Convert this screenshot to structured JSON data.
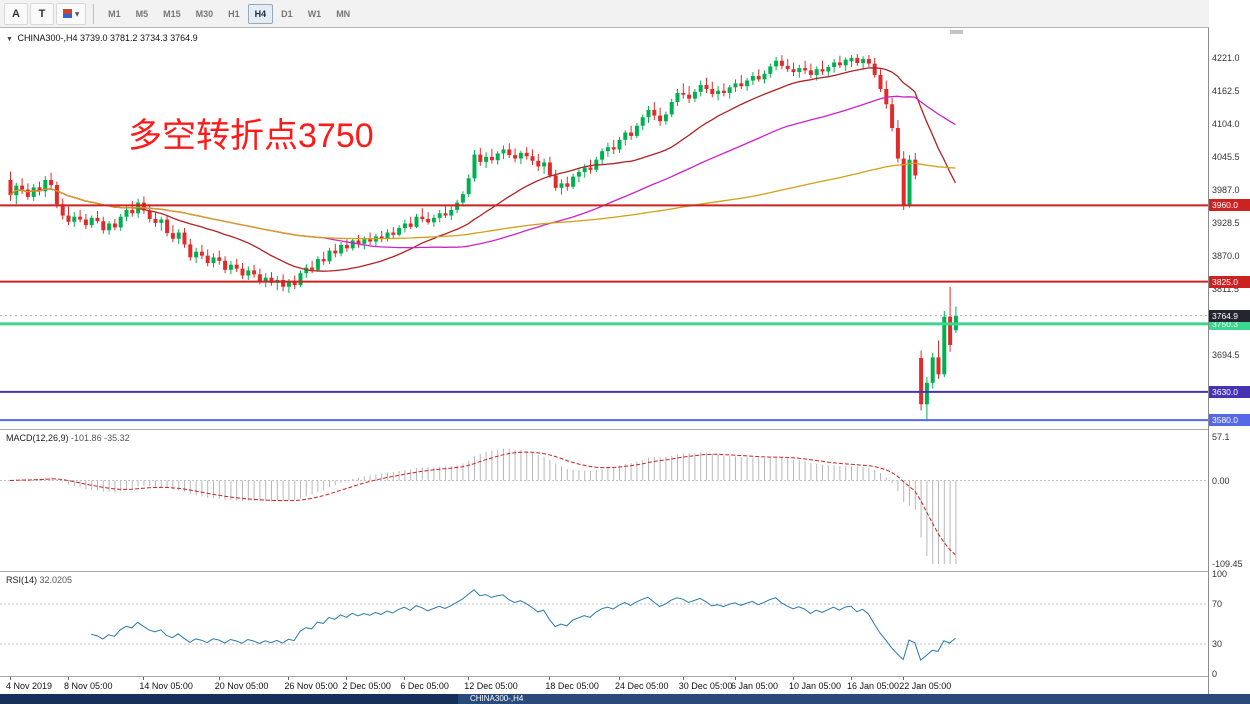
{
  "toolbar": {
    "tools": [
      {
        "label": "A"
      },
      {
        "label": "T"
      }
    ],
    "draw_tool_caret": "▾",
    "timeframes": [
      "M1",
      "M5",
      "M15",
      "M30",
      "H1",
      "H4",
      "D1",
      "W1",
      "MN"
    ],
    "active_timeframe": "H4"
  },
  "chart": {
    "title_collapse_icon": "▼",
    "title_symbol": "CHINA300-,H4",
    "title_ohlc": "3739.0 3781.2 3734.3 3764.9",
    "annotation": {
      "text": "多空转折点3750",
      "color": "#ff1a1a"
    },
    "price_axis_labels": [
      "4221.0",
      "4162.5",
      "4104.0",
      "4045.5",
      "3987.0",
      "3928.5",
      "3870.0",
      "3811.5",
      "3694.5"
    ]
  },
  "chart_data": {
    "type": "candlestick",
    "symbol": "CHINA300",
    "timeframe": "H4",
    "current_ohlc": {
      "open": 3739.0,
      "high": 3781.2,
      "low": 3734.3,
      "close": 3764.9
    },
    "current_price": 3764.9,
    "current_price_badge": {
      "label": "3764.9",
      "color": "#23262e"
    },
    "price_axis_range": [
      4274,
      3564
    ],
    "hlines": [
      {
        "price": 3960.0,
        "label": "3960.0",
        "color": "#cc2222",
        "width": 2
      },
      {
        "price": 3825.0,
        "label": "3825.0",
        "color": "#cc2222",
        "width": 2
      },
      {
        "price": 3750.3,
        "label": "3750.3",
        "color": "#3bd68f",
        "width": 3
      },
      {
        "price": 3630.0,
        "label": "3630.0",
        "color": "#4533b4",
        "width": 2
      },
      {
        "price": 3580.0,
        "label": "3580.0",
        "color": "#5468e8",
        "width": 2
      }
    ],
    "moving_averages": [
      {
        "period": 22,
        "color": "#b22222"
      },
      {
        "period": 55,
        "color": "#cc22cc"
      },
      {
        "period": 120,
        "color": "#d4a017"
      }
    ],
    "time_labels": [
      {
        "i": 0,
        "t": "4 Nov 2019"
      },
      {
        "i": 10,
        "t": "8 Nov 05:00"
      },
      {
        "i": 23,
        "t": "14 Nov 05:00"
      },
      {
        "i": 36,
        "t": "20 Nov 05:00"
      },
      {
        "i": 48,
        "t": "26 Nov 05:00"
      },
      {
        "i": 58,
        "t": "2 Dec 05:00"
      },
      {
        "i": 68,
        "t": "6 Dec 05:00"
      },
      {
        "i": 79,
        "t": "12 Dec 05:00"
      },
      {
        "i": 93,
        "t": "18 Dec 05:00"
      },
      {
        "i": 105,
        "t": "24 Dec 05:00"
      },
      {
        "i": 116,
        "t": "30 Dec 05:00"
      },
      {
        "i": 125,
        "t": "6 Jan 05:00"
      },
      {
        "i": 135,
        "t": "10 Jan 05:00"
      },
      {
        "i": 145,
        "t": "16 Jan 05:00"
      },
      {
        "i": 154,
        "t": "22 Jan 05:00"
      }
    ],
    "indicators": [
      {
        "name": "MACD",
        "label": "MACD(12,26,9)",
        "values_text": "-101.86 -35.32",
        "axis_labels": [
          "57.1",
          "0.00",
          "-109.45"
        ],
        "axis_range": [
          57.1,
          -109.45
        ],
        "fast": 12,
        "slow": 26,
        "signal": 9
      },
      {
        "name": "RSI",
        "label": "RSI(14)",
        "values_text": "32.0205",
        "axis_labels": [
          "100",
          "70",
          "30",
          "0"
        ],
        "levels": [
          70,
          30
        ],
        "period": 14
      }
    ],
    "candles": [
      [
        4005,
        4020,
        3968,
        3978
      ],
      [
        3978,
        4000,
        3962,
        3995
      ],
      [
        3995,
        4008,
        3980,
        3988
      ],
      [
        3988,
        3999,
        3970,
        3975
      ],
      [
        3975,
        3998,
        3968,
        3992
      ],
      [
        3992,
        4002,
        3978,
        3985
      ],
      [
        3985,
        4012,
        3975,
        4005
      ],
      [
        4005,
        4018,
        3990,
        3996
      ],
      [
        3996,
        4002,
        3955,
        3962
      ],
      [
        3962,
        3972,
        3935,
        3942
      ],
      [
        3942,
        3958,
        3925,
        3931
      ],
      [
        3931,
        3948,
        3922,
        3940
      ],
      [
        3940,
        3952,
        3930,
        3935
      ],
      [
        3935,
        3945,
        3918,
        3925
      ],
      [
        3925,
        3942,
        3920,
        3938
      ],
      [
        3938,
        3950,
        3928,
        3932
      ],
      [
        3932,
        3940,
        3910,
        3916
      ],
      [
        3916,
        3932,
        3908,
        3928
      ],
      [
        3928,
        3936,
        3916,
        3921
      ],
      [
        3921,
        3945,
        3915,
        3940
      ],
      [
        3940,
        3958,
        3932,
        3952
      ],
      [
        3952,
        3968,
        3940,
        3946
      ],
      [
        3946,
        3972,
        3938,
        3965
      ],
      [
        3965,
        3976,
        3945,
        3951
      ],
      [
        3951,
        3962,
        3930,
        3936
      ],
      [
        3936,
        3948,
        3922,
        3929
      ],
      [
        3929,
        3940,
        3915,
        3935
      ],
      [
        3935,
        3942,
        3905,
        3911
      ],
      [
        3911,
        3925,
        3895,
        3901
      ],
      [
        3901,
        3918,
        3892,
        3912
      ],
      [
        3912,
        3920,
        3885,
        3891
      ],
      [
        3891,
        3901,
        3862,
        3868
      ],
      [
        3868,
        3885,
        3858,
        3878
      ],
      [
        3878,
        3890,
        3865,
        3871
      ],
      [
        3871,
        3882,
        3852,
        3858
      ],
      [
        3858,
        3875,
        3850,
        3868
      ],
      [
        3868,
        3880,
        3855,
        3862
      ],
      [
        3862,
        3870,
        3840,
        3846
      ],
      [
        3846,
        3862,
        3838,
        3855
      ],
      [
        3855,
        3865,
        3842,
        3848
      ],
      [
        3848,
        3858,
        3830,
        3836
      ],
      [
        3836,
        3852,
        3828,
        3845
      ],
      [
        3845,
        3855,
        3832,
        3838
      ],
      [
        3838,
        3848,
        3820,
        3826
      ],
      [
        3826,
        3840,
        3815,
        3832
      ],
      [
        3832,
        3842,
        3818,
        3823
      ],
      [
        3823,
        3835,
        3810,
        3828
      ],
      [
        3828,
        3838,
        3808,
        3816
      ],
      [
        3816,
        3830,
        3805,
        3824
      ],
      [
        3824,
        3836,
        3812,
        3819
      ],
      [
        3819,
        3845,
        3815,
        3840
      ],
      [
        3840,
        3856,
        3832,
        3850
      ],
      [
        3850,
        3862,
        3840,
        3846
      ],
      [
        3846,
        3870,
        3842,
        3865
      ],
      [
        3865,
        3878,
        3855,
        3861
      ],
      [
        3861,
        3885,
        3856,
        3880
      ],
      [
        3880,
        3892,
        3868,
        3875
      ],
      [
        3875,
        3895,
        3870,
        3890
      ],
      [
        3890,
        3900,
        3878,
        3884
      ],
      [
        3884,
        3902,
        3880,
        3898
      ],
      [
        3898,
        3908,
        3885,
        3892
      ],
      [
        3892,
        3905,
        3882,
        3900
      ],
      [
        3900,
        3912,
        3890,
        3896
      ],
      [
        3896,
        3910,
        3888,
        3905
      ],
      [
        3905,
        3915,
        3895,
        3901
      ],
      [
        3901,
        3918,
        3896,
        3912
      ],
      [
        3912,
        3922,
        3902,
        3908
      ],
      [
        3908,
        3925,
        3905,
        3920
      ],
      [
        3920,
        3935,
        3912,
        3928
      ],
      [
        3928,
        3940,
        3918,
        3922
      ],
      [
        3922,
        3945,
        3920,
        3940
      ],
      [
        3940,
        3955,
        3930,
        3936
      ],
      [
        3936,
        3948,
        3926,
        3930
      ],
      [
        3930,
        3944,
        3922,
        3938
      ],
      [
        3938,
        3952,
        3930,
        3946
      ],
      [
        3946,
        3960,
        3938,
        3942
      ],
      [
        3942,
        3958,
        3934,
        3952
      ],
      [
        3952,
        3970,
        3946,
        3965
      ],
      [
        3965,
        3985,
        3958,
        3980
      ],
      [
        3980,
        4015,
        3975,
        4008
      ],
      [
        4008,
        4058,
        4002,
        4050
      ],
      [
        4050,
        4062,
        4030,
        4037
      ],
      [
        4037,
        4054,
        4026,
        4046
      ],
      [
        4046,
        4060,
        4034,
        4040
      ],
      [
        4040,
        4056,
        4032,
        4052
      ],
      [
        4052,
        4066,
        4042,
        4059
      ],
      [
        4059,
        4070,
        4044,
        4049
      ],
      [
        4049,
        4061,
        4036,
        4043
      ],
      [
        4043,
        4057,
        4033,
        4053
      ],
      [
        4053,
        4063,
        4041,
        4047
      ],
      [
        4047,
        4059,
        4031,
        4039
      ],
      [
        4039,
        4051,
        4021,
        4029
      ],
      [
        4029,
        4043,
        4016,
        4036
      ],
      [
        4036,
        4046,
        4009,
        4013
      ],
      [
        4013,
        4023,
        3986,
        3991
      ],
      [
        3991,
        4006,
        3979,
        3999
      ],
      [
        3999,
        4011,
        3986,
        3993
      ],
      [
        3993,
        4016,
        3989,
        4011
      ],
      [
        4011,
        4026,
        4001,
        4019
      ],
      [
        4019,
        4033,
        4009,
        4027
      ],
      [
        4027,
        4041,
        4016,
        4023
      ],
      [
        4023,
        4046,
        4019,
        4041
      ],
      [
        4041,
        4061,
        4033,
        4056
      ],
      [
        4056,
        4071,
        4046,
        4063
      ],
      [
        4063,
        4076,
        4051,
        4059
      ],
      [
        4059,
        4081,
        4053,
        4076
      ],
      [
        4076,
        4093,
        4066,
        4089
      ],
      [
        4089,
        4101,
        4076,
        4083
      ],
      [
        4083,
        4106,
        4079,
        4101
      ],
      [
        4101,
        4121,
        4093,
        4116
      ],
      [
        4116,
        4136,
        4106,
        4129
      ],
      [
        4129,
        4143,
        4111,
        4119
      ],
      [
        4119,
        4133,
        4101,
        4109
      ],
      [
        4109,
        4126,
        4103,
        4121
      ],
      [
        4121,
        4149,
        4116,
        4143
      ],
      [
        4143,
        4166,
        4136,
        4159
      ],
      [
        4159,
        4176,
        4149,
        4156
      ],
      [
        4156,
        4171,
        4141,
        4149
      ],
      [
        4149,
        4166,
        4143,
        4161
      ],
      [
        4161,
        4181,
        4153,
        4173
      ],
      [
        4173,
        4186,
        4159,
        4166
      ],
      [
        4166,
        4179,
        4151,
        4157
      ],
      [
        4157,
        4171,
        4146,
        4163
      ],
      [
        4163,
        4176,
        4153,
        4159
      ],
      [
        4159,
        4173,
        4149,
        4169
      ],
      [
        4169,
        4183,
        4161,
        4176
      ],
      [
        4176,
        4191,
        4166,
        4171
      ],
      [
        4171,
        4186,
        4163,
        4181
      ],
      [
        4181,
        4196,
        4173,
        4189
      ],
      [
        4189,
        4201,
        4179,
        4183
      ],
      [
        4183,
        4199,
        4176,
        4193
      ],
      [
        4193,
        4211,
        4186,
        4206
      ],
      [
        4206,
        4223,
        4199,
        4216
      ],
      [
        4216,
        4226,
        4201,
        4207
      ],
      [
        4207,
        4219,
        4196,
        4201
      ],
      [
        4201,
        4213,
        4189,
        4196
      ],
      [
        4196,
        4209,
        4186,
        4203
      ],
      [
        4203,
        4216,
        4193,
        4199
      ],
      [
        4199,
        4211,
        4186,
        4191
      ],
      [
        4191,
        4206,
        4181,
        4201
      ],
      [
        4201,
        4216,
        4191,
        4197
      ],
      [
        4197,
        4209,
        4187,
        4205
      ],
      [
        4205,
        4219,
        4195,
        4213
      ],
      [
        4213,
        4225,
        4203,
        4208
      ],
      [
        4208,
        4222,
        4198,
        4218
      ],
      [
        4215,
        4226,
        4205,
        4221
      ],
      [
        4221,
        4228,
        4207,
        4212
      ],
      [
        4212,
        4224,
        4200,
        4219
      ],
      [
        4219,
        4226,
        4205,
        4211
      ],
      [
        4211,
        4221,
        4186,
        4191
      ],
      [
        4191,
        4201,
        4161,
        4166
      ],
      [
        4166,
        4181,
        4131,
        4139
      ],
      [
        4139,
        4151,
        4091,
        4097
      ],
      [
        4097,
        4111,
        4036,
        4043
      ],
      [
        4043,
        4056,
        3952,
        3961
      ],
      [
        3961,
        4049,
        3956,
        4041
      ],
      [
        4041,
        4053,
        4006,
        4013
      ],
      [
        3690,
        3703,
        3597,
        3608
      ],
      [
        3608,
        3656,
        3578,
        3646
      ],
      [
        3646,
        3699,
        3636,
        3691
      ],
      [
        3691,
        3721,
        3653,
        3661
      ],
      [
        3661,
        3773,
        3656,
        3763
      ],
      [
        3763,
        3816,
        3701,
        3713
      ],
      [
        3739,
        3781.2,
        3734.3,
        3764.9
      ]
    ]
  },
  "colors": {
    "candle_up": "#00b050",
    "candle_down": "#e02b2b",
    "macd_histogram": "#b8b8b8",
    "macd_signal": "#cc2222",
    "rsi_line": "#2a7ab0",
    "level_dashed": "#c0c0c0"
  },
  "bottom_bar": {
    "tab_label": "CHINA300-,H4"
  }
}
